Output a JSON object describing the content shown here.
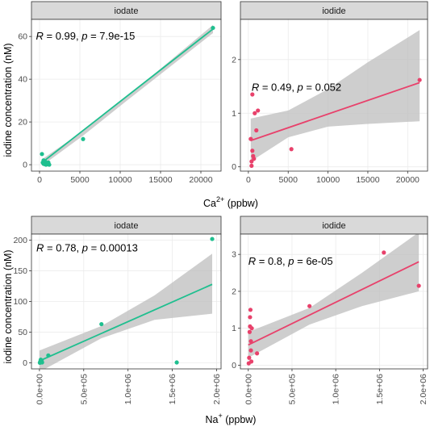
{
  "colors": {
    "iodate": "#1fbf8f",
    "iodide": "#e8416b",
    "ribbon": "#bdbdbd",
    "strip_bg": "#d9d9d9",
    "grid": "#ebebeb"
  },
  "y_axis_title": "iodine concentration (nM)",
  "x_axis_titles": {
    "top": {
      "main": "Ca",
      "sup": "2+",
      "unit": "(ppbw)"
    },
    "bottom": {
      "main": "Na",
      "sup": "+",
      "unit": "(ppbw)"
    }
  },
  "chart_data": [
    {
      "type": "scatter",
      "panel": "top-left",
      "strip_label": "iodate",
      "series_color": "iodate",
      "x": [
        300,
        400,
        500,
        500,
        600,
        700,
        800,
        900,
        1000,
        1100,
        1200,
        5400,
        21500
      ],
      "y": [
        5,
        1,
        0.5,
        2,
        0.3,
        1.5,
        0,
        0.5,
        0.2,
        1,
        0,
        12,
        64
      ],
      "fit_line": [
        [
          300,
          1.0
        ],
        [
          21500,
          63.5
        ]
      ],
      "ribbon": [
        [
          300,
          -0.5,
          2.5
        ],
        [
          5400,
          13.6,
          15.8
        ],
        [
          10900,
          30.2,
          32.0
        ],
        [
          21500,
          61.6,
          65.4
        ]
      ],
      "xlim": [
        -1000,
        22500
      ],
      "ylim": [
        -3,
        68
      ],
      "x_ticks": [
        0,
        5000,
        10000,
        15000,
        20000
      ],
      "x_tick_labels": [
        "0",
        "5000",
        "10000",
        "15000",
        "20000"
      ],
      "y_ticks": [
        0,
        20,
        40,
        60
      ],
      "y_tick_labels": [
        "0",
        "20",
        "40",
        "60"
      ],
      "annotation": {
        "r_label": "R",
        "r_value": " = 0.99, ",
        "p_label": "p",
        "p_value": " = 7.9e-15"
      },
      "annotation_pos": [
        -450,
        58.5
      ]
    },
    {
      "type": "scatter",
      "panel": "top-right",
      "strip_label": "iodide",
      "series_color": "iodide",
      "x": [
        300,
        400,
        400,
        500,
        500,
        600,
        700,
        800,
        1000,
        1200,
        5400,
        21500
      ],
      "y": [
        0.52,
        0.02,
        0.1,
        0.3,
        1.35,
        0.2,
        0.15,
        1.0,
        0.68,
        1.05,
        0.33,
        1.62
      ],
      "fit_line": [
        [
          300,
          0.49
        ],
        [
          21500,
          1.57
        ]
      ],
      "ribbon": [
        [
          300,
          0.1,
          0.9
        ],
        [
          5000,
          0.55,
          1.05
        ],
        [
          10000,
          0.75,
          1.45
        ],
        [
          15000,
          0.8,
          1.95
        ],
        [
          21500,
          0.85,
          2.55
        ]
      ],
      "xlim": [
        -1000,
        22500
      ],
      "ylim": [
        -0.08,
        2.75
      ],
      "x_ticks": [
        0,
        5000,
        10000,
        15000,
        20000
      ],
      "x_tick_labels": [
        "0",
        "5000",
        "10000",
        "15000",
        "20000"
      ],
      "y_ticks": [
        0,
        1,
        2
      ],
      "y_tick_labels": [
        "0",
        "1",
        "2"
      ],
      "annotation": {
        "r_label": "R",
        "r_value": " = 0.49, ",
        "p_label": "p",
        "p_value": " = 0.052"
      },
      "annotation_pos": [
        400,
        1.42
      ]
    },
    {
      "type": "scatter",
      "panel": "bottom-left",
      "strip_label": "iodate",
      "series_color": "iodate",
      "x": [
        5000,
        10000,
        15000,
        20000,
        25000,
        30000,
        100000,
        700000,
        1550000,
        1950000
      ],
      "y": [
        0,
        2,
        5,
        1,
        3,
        0.5,
        12,
        63,
        0.5,
        202
      ],
      "fit_line": [
        [
          0,
          3
        ],
        [
          1950000,
          128
        ]
      ],
      "ribbon": [
        [
          0,
          -15,
          20
        ],
        [
          700000,
          40,
          60
        ],
        [
          1300000,
          70,
          110
        ],
        [
          1950000,
          80,
          178
        ]
      ],
      "xlim": [
        -90000,
        2050000
      ],
      "ylim": [
        -10,
        210
      ],
      "x_ticks": [
        0,
        500000,
        1000000,
        1500000,
        2000000
      ],
      "x_tick_labels": [
        "0.0e+00",
        "5.0e+05",
        "1.0e+06",
        "1.5e+06",
        "2.0e+06"
      ],
      "y_ticks": [
        0,
        50,
        100,
        150,
        200
      ],
      "y_tick_labels": [
        "0",
        "50",
        "100",
        "150",
        "200"
      ],
      "annotation": {
        "r_label": "R",
        "r_value": " = 0.78, ",
        "p_label": "p",
        "p_value": " = 0.00013"
      },
      "annotation_pos": [
        -35000,
        182
      ]
    },
    {
      "type": "scatter",
      "panel": "bottom-right",
      "strip_label": "iodide",
      "series_color": "iodide",
      "x": [
        5000,
        10000,
        15000,
        20000,
        20000,
        25000,
        30000,
        30000,
        35000,
        40000,
        100000,
        700000,
        1550000,
        1950000
      ],
      "y": [
        0.05,
        0.2,
        0.9,
        1.05,
        1.3,
        1.5,
        0.65,
        0.4,
        0.1,
        1.0,
        0.32,
        1.6,
        3.05,
        2.15
      ],
      "fit_line": [
        [
          0,
          0.55
        ],
        [
          1950000,
          2.8
        ]
      ],
      "ribbon": [
        [
          0,
          0.2,
          0.9
        ],
        [
          700000,
          1.1,
          1.55
        ],
        [
          1300000,
          1.6,
          2.5
        ],
        [
          1950000,
          2.0,
          3.6
        ]
      ],
      "xlim": [
        -90000,
        2050000
      ],
      "ylim": [
        -0.1,
        3.55
      ],
      "x_ticks": [
        0,
        500000,
        1000000,
        1500000,
        2000000
      ],
      "x_tick_labels": [
        "0.0e+00",
        "5.0e+05",
        "1.0e+06",
        "1.5e+06",
        "2.0e+06"
      ],
      "y_ticks": [
        0,
        1,
        2,
        3
      ],
      "y_tick_labels": [
        "0",
        "1",
        "2",
        "3"
      ],
      "annotation": {
        "r_label": "R",
        "r_value": " = 0.8, ",
        "p_label": "p",
        "p_value": " = 6e-05"
      },
      "annotation_pos": [
        0,
        2.72
      ]
    }
  ]
}
